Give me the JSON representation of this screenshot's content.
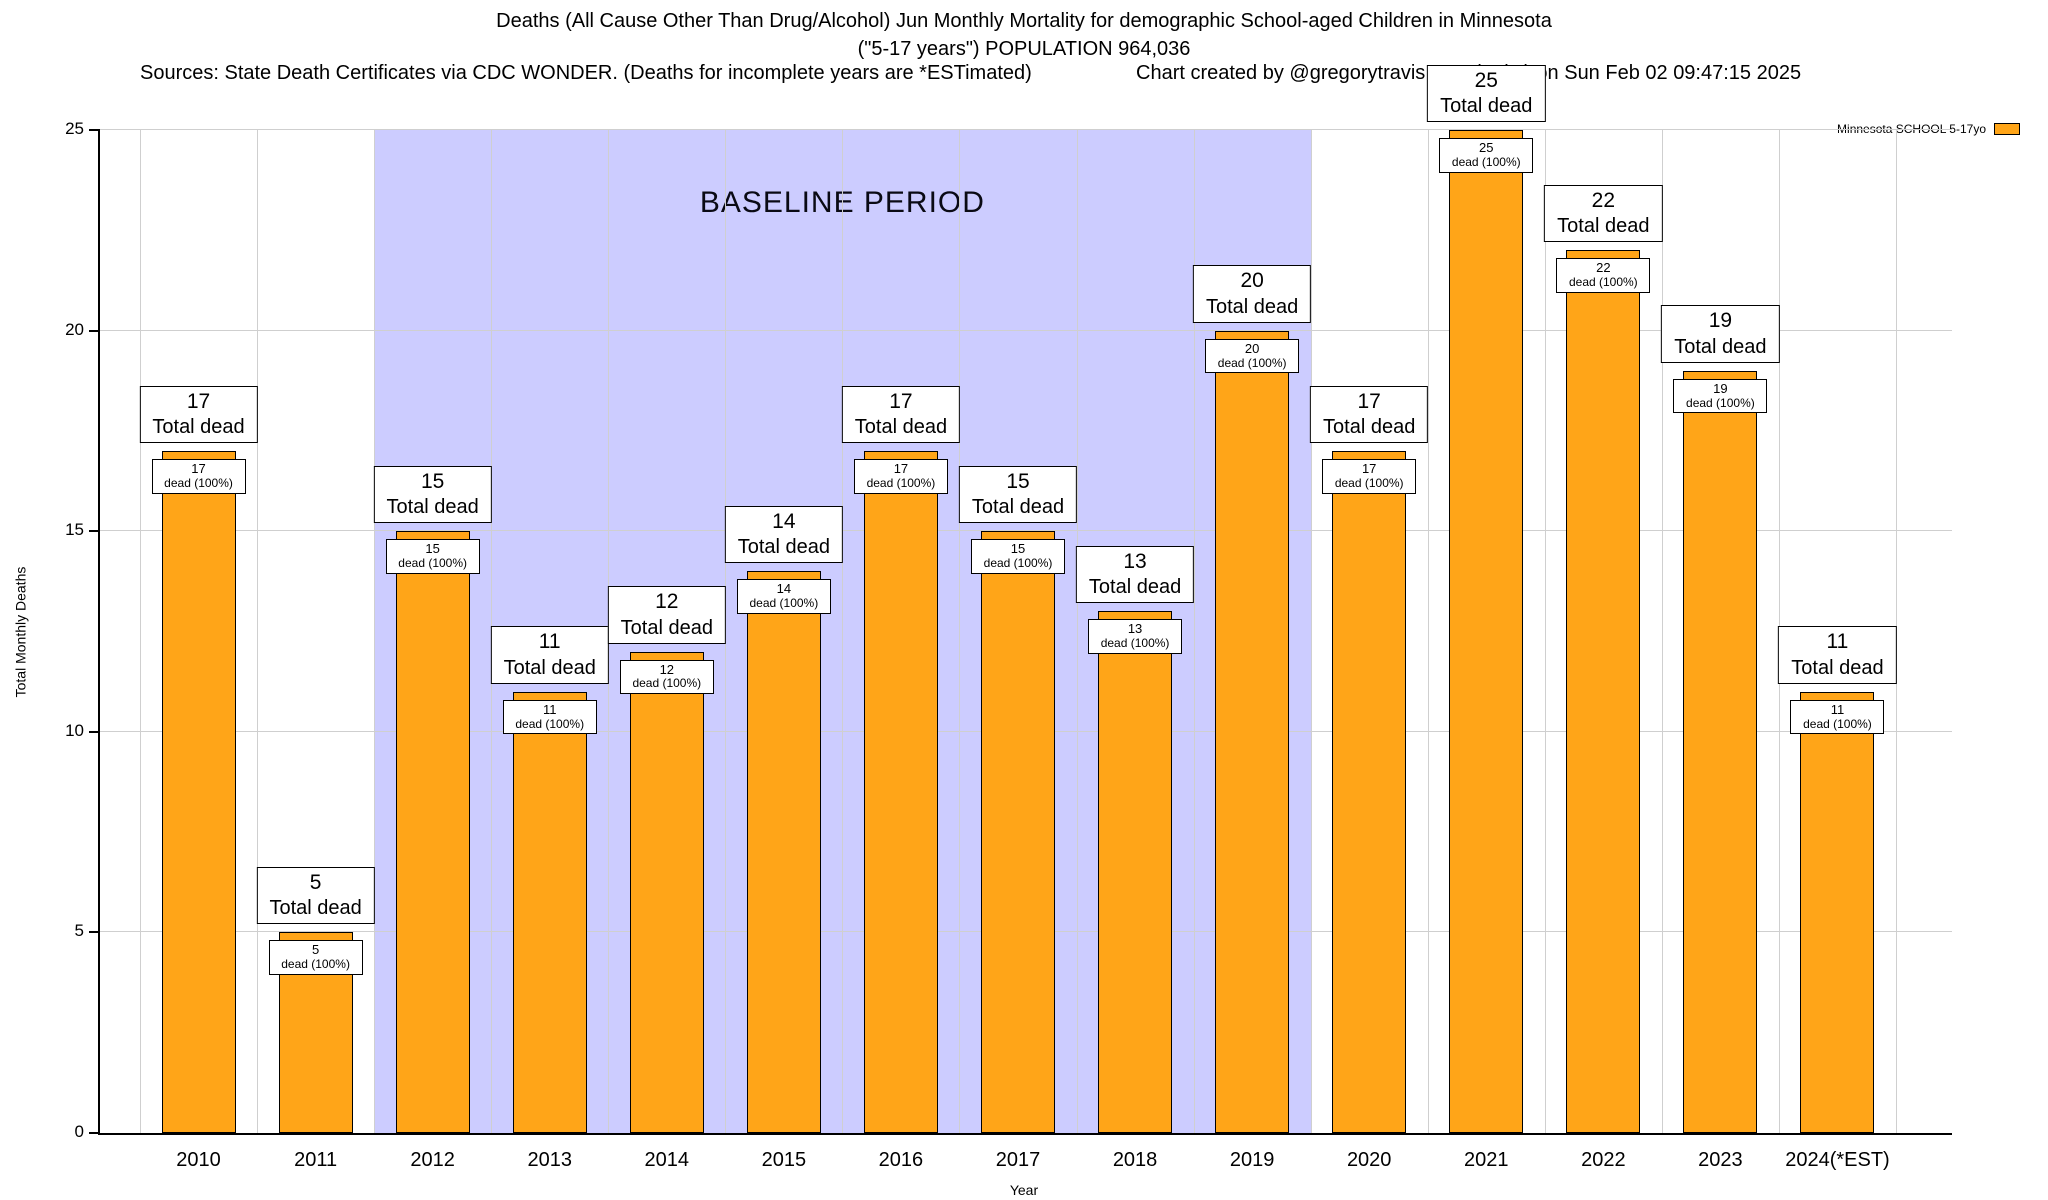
{
  "header": {
    "title_line1": "Deaths (All Cause Other Than Drug/Alcohol) Jun Monthly Mortality for demographic School-aged Children in Minnesota",
    "title_line2": "(\"5-17 years\") POPULATION 964,036",
    "sources": "Sources: State Death Certificates via CDC WONDER. (Deaths for incomplete years are *ESTimated)",
    "credit": "Chart created by @gregorytravis.com (Bsky) on Sun Feb 02 09:47:15 2025"
  },
  "legend": {
    "label": "Minnesota SCHOOL 5-17yo",
    "swatch_color": "#FFA518"
  },
  "baseline": {
    "label": "BASELINE PERIOD",
    "color": "#CCCCFF"
  },
  "axes": {
    "ylabel": "Total Monthly Deaths",
    "xlabel": "Year",
    "yticks": [
      0,
      5,
      10,
      15,
      20,
      25
    ],
    "grid": true
  },
  "bar_labels": {
    "above_suffix": "Total dead",
    "inner_suffix": "dead (100%)"
  },
  "chart_data": {
    "type": "bar",
    "title": "Deaths (All Cause Other Than Drug/Alcohol) Jun Monthly Mortality for demographic School-aged Children in Minnesota (\"5-17 years\") POPULATION 964,036",
    "xlabel": "Year",
    "ylabel": "Total Monthly Deaths",
    "ylim": [
      0,
      25
    ],
    "categories": [
      "2010",
      "2011",
      "2012",
      "2013",
      "2014",
      "2015",
      "2016",
      "2017",
      "2018",
      "2019",
      "2020",
      "2021",
      "2022",
      "2023",
      "2024(*EST)"
    ],
    "values": [
      17,
      5,
      15,
      11,
      12,
      14,
      17,
      15,
      13,
      20,
      17,
      25,
      22,
      19,
      11
    ],
    "bar_color": "#FFA518",
    "baseline_span": [
      "2012",
      "2019"
    ],
    "legend": "Minnesota SCHOOL 5-17yo",
    "annotations_above": [
      "17 Total dead",
      "5 Total dead",
      "15 Total dead",
      "11 Total dead",
      "12 Total dead",
      "14 Total dead",
      "17 Total dead",
      "15 Total dead",
      "13 Total dead",
      "20 Total dead",
      "17 Total dead",
      "25 Total dead",
      "22 Total dead",
      "19 Total dead",
      "11 Total dead"
    ],
    "annotations_inner": [
      "17 dead (100%)",
      "5 dead (100%)",
      "15 dead (100%)",
      "11 dead (100%)",
      "12 dead (100%)",
      "14 dead (100%)",
      "17 dead (100%)",
      "15 dead (100%)",
      "13 dead (100%)",
      "20 dead (100%)",
      "17 dead (100%)",
      "25 dead (100%)",
      "22 dead (100%)",
      "19 dead (100%)",
      "11 dead (100%)"
    ]
  }
}
